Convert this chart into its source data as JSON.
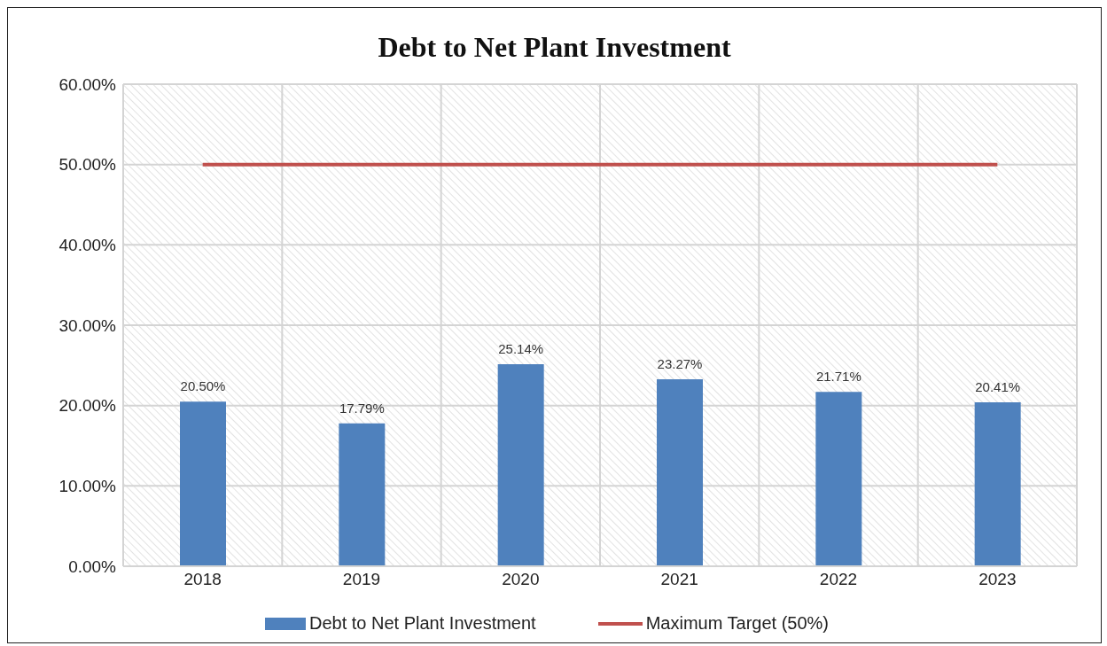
{
  "chart_data": {
    "type": "bar",
    "title": "Debt to Net Plant Investment",
    "categories": [
      "2018",
      "2019",
      "2020",
      "2021",
      "2022",
      "2023"
    ],
    "series": [
      {
        "name": "Debt to Net Plant Investment",
        "color": "#4f81bd",
        "values": [
          20.5,
          17.79,
          25.14,
          23.27,
          21.71,
          20.41
        ],
        "value_labels": [
          "20.50%",
          "17.79%",
          "25.14%",
          "23.27%",
          "21.71%",
          "20.41%"
        ]
      },
      {
        "name": "Maximum Target (50%)",
        "type": "line",
        "color": "#c0504d",
        "values": [
          50,
          50,
          50,
          50,
          50,
          50
        ]
      }
    ],
    "ylim": [
      0,
      60
    ],
    "yticks": [
      {
        "value": 0,
        "label": "0.00%"
      },
      {
        "value": 10,
        "label": "10.00%"
      },
      {
        "value": 20,
        "label": "20.00%"
      },
      {
        "value": 30,
        "label": "30.00%"
      },
      {
        "value": 40,
        "label": "40.00%"
      },
      {
        "value": 50,
        "label": "50.00%"
      },
      {
        "value": 60,
        "label": "60.00%"
      }
    ],
    "grid": true,
    "legend": "bottom",
    "marker": "none",
    "line_style": "solid"
  }
}
